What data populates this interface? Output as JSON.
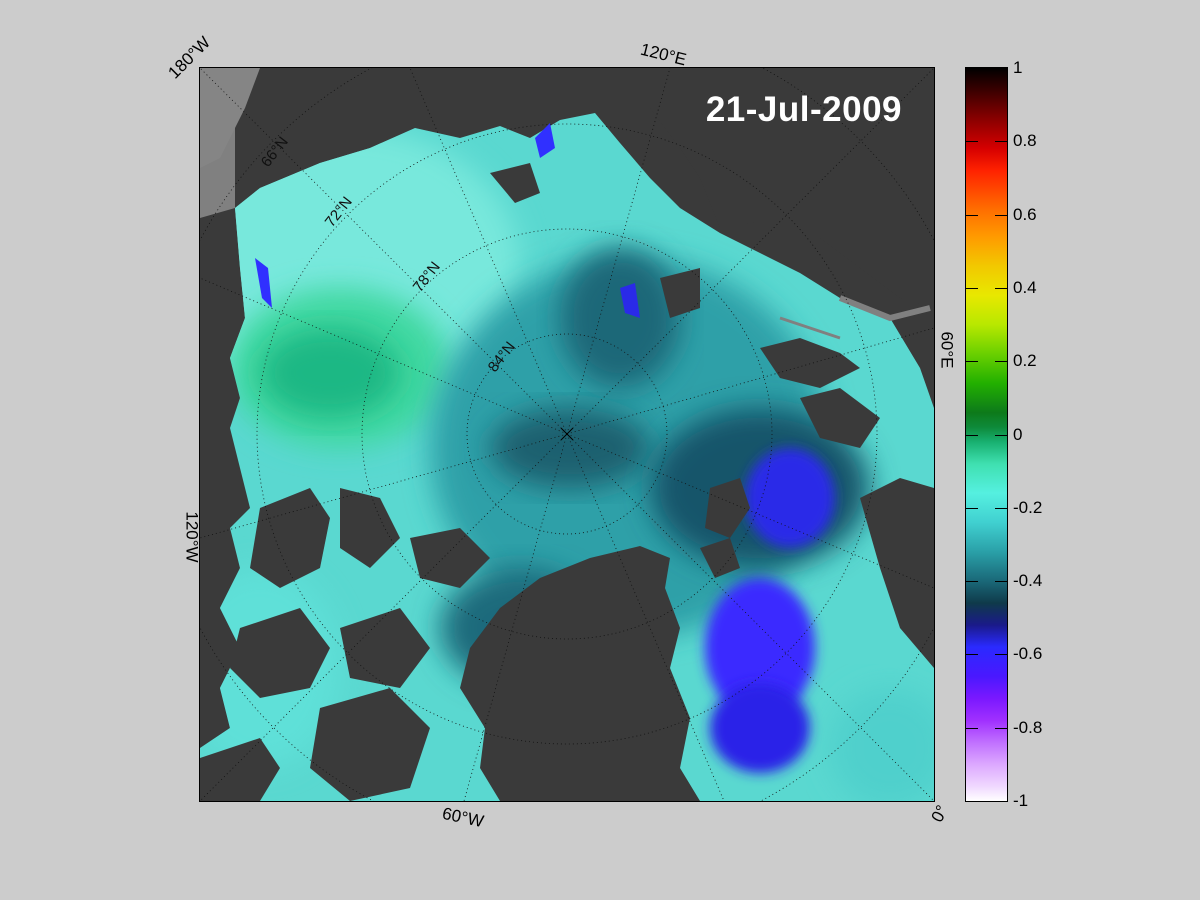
{
  "map": {
    "date": "21-Jul-2009",
    "longitude_labels": {
      "w180": "180°W",
      "e120": "120°E",
      "e60": "60°E",
      "w120": "120°W",
      "w60": "60°W",
      "zero": "0°"
    },
    "latitude_labels": {
      "n66": "66°N",
      "n72": "72°N",
      "n78": "78°N",
      "n84": "84°N"
    },
    "colors": {
      "land": "#3a3a3a",
      "missing": "#808080",
      "background": "#cccccc"
    }
  },
  "colorbar": {
    "range": [
      -1,
      1
    ],
    "ticks": [
      "1",
      "0.8",
      "0.6",
      "0.4",
      "0.2",
      "0",
      "-0.2",
      "-0.4",
      "-0.6",
      "-0.8",
      "-1"
    ]
  }
}
